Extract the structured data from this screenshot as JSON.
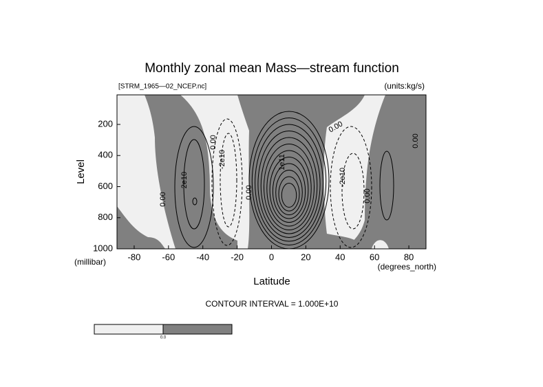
{
  "chart_data": {
    "type": "contour",
    "title": "Monthly zonal mean Mass—stream function",
    "subtitle_left": "[STRM_1965—02_NCEP.nc]",
    "subtitle_right": "(units:kg/s)",
    "x_label": "Latitude",
    "y_label": "Level",
    "x_unit": "(degrees_north)",
    "y_unit": "(millibar)",
    "annotation": "CONTOUR INTERVAL = 1.000E+10",
    "xlim": [
      -90,
      90
    ],
    "xticks": [
      -80,
      -60,
      -40,
      -20,
      0,
      20,
      40,
      60,
      80
    ],
    "ylim": [
      1000,
      10
    ],
    "yticks": [
      200,
      400,
      600,
      800,
      1000
    ],
    "contour_labels": [
      "0.00",
      "2e10",
      "-2e10",
      "1e11"
    ],
    "colorbar_labels": [
      "0.0"
    ],
    "colors": {
      "positive": "#808080",
      "negative": "#f0f0f0"
    }
  }
}
